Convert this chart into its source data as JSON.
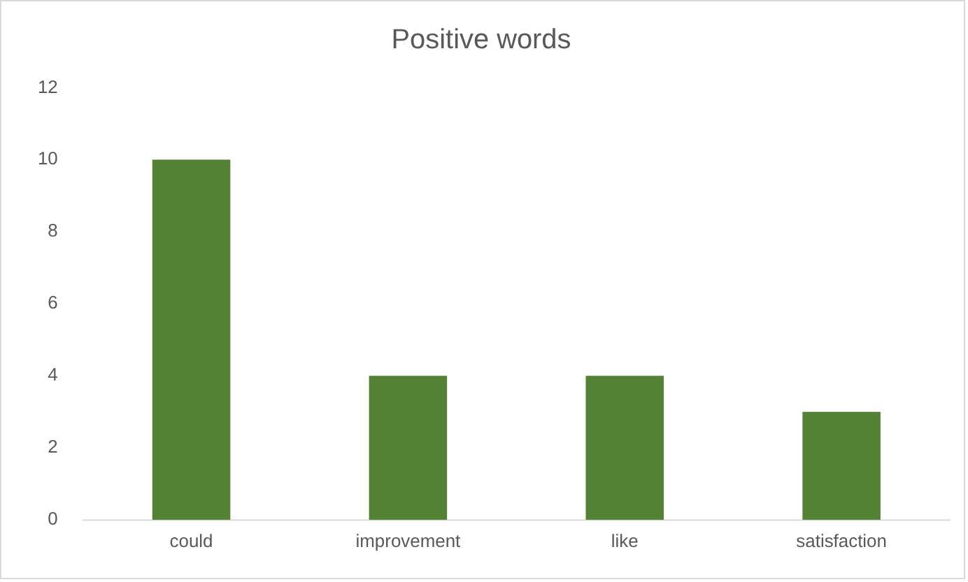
{
  "chart_data": {
    "type": "bar",
    "title": "Positive words",
    "categories": [
      "could",
      "improvement",
      "like",
      "satisfaction"
    ],
    "values": [
      10,
      4,
      4,
      3
    ],
    "color": "#548235",
    "ylim": [
      0,
      12
    ],
    "yticks": [
      0,
      2,
      4,
      6,
      8,
      10,
      12
    ],
    "grid": false,
    "legend": false
  }
}
